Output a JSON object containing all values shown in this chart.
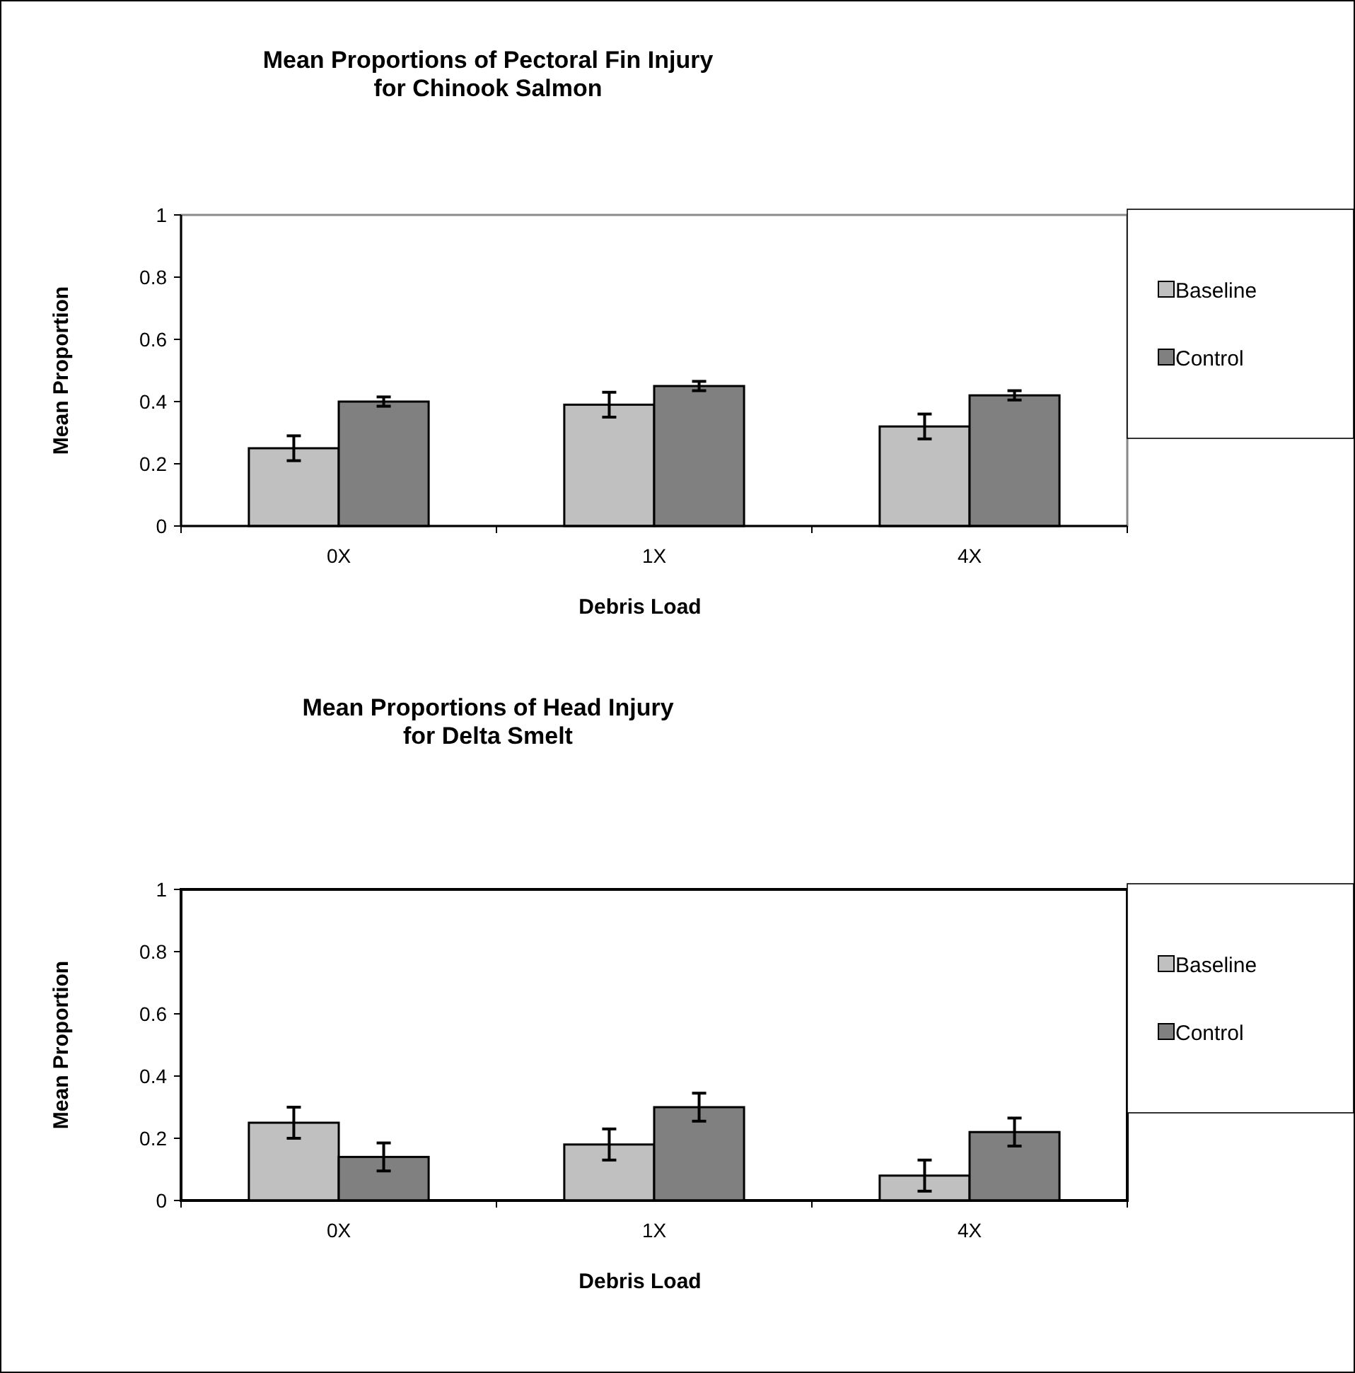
{
  "chart_data": [
    {
      "type": "bar",
      "title": "Mean Proportions of Pectoral Fin Injury\nfor Chinook Salmon",
      "xlabel": "Debris Load",
      "ylabel": "Mean Proportion",
      "categories": [
        "0X",
        "1X",
        "4X"
      ],
      "series": [
        {
          "name": "Baseline",
          "color": "#c0c0c0",
          "values": [
            0.25,
            0.39,
            0.32
          ],
          "errors": [
            0.04,
            0.04,
            0.04
          ]
        },
        {
          "name": "Control",
          "color": "#808080",
          "values": [
            0.4,
            0.45,
            0.42
          ],
          "errors": [
            0.015,
            0.015,
            0.015
          ]
        }
      ],
      "ylim": [
        0,
        1
      ],
      "yticks": [
        0,
        0.2,
        0.4,
        0.6,
        0.8,
        1
      ],
      "grid": false,
      "legend": "right"
    },
    {
      "type": "bar",
      "title": "Mean Proportions of Head Injury\nfor Delta Smelt",
      "xlabel": "Debris Load",
      "ylabel": "Mean Proportion",
      "categories": [
        "0X",
        "1X",
        "4X"
      ],
      "series": [
        {
          "name": "Baseline",
          "color": "#c0c0c0",
          "values": [
            0.25,
            0.18,
            0.08
          ],
          "errors": [
            0.05,
            0.05,
            0.05
          ]
        },
        {
          "name": "Control",
          "color": "#808080",
          "values": [
            0.14,
            0.3,
            0.22
          ],
          "errors": [
            0.045,
            0.045,
            0.045
          ]
        }
      ],
      "ylim": [
        0,
        1
      ],
      "yticks": [
        0,
        0.2,
        0.4,
        0.6,
        0.8,
        1
      ],
      "grid": false,
      "legend": "right"
    }
  ]
}
